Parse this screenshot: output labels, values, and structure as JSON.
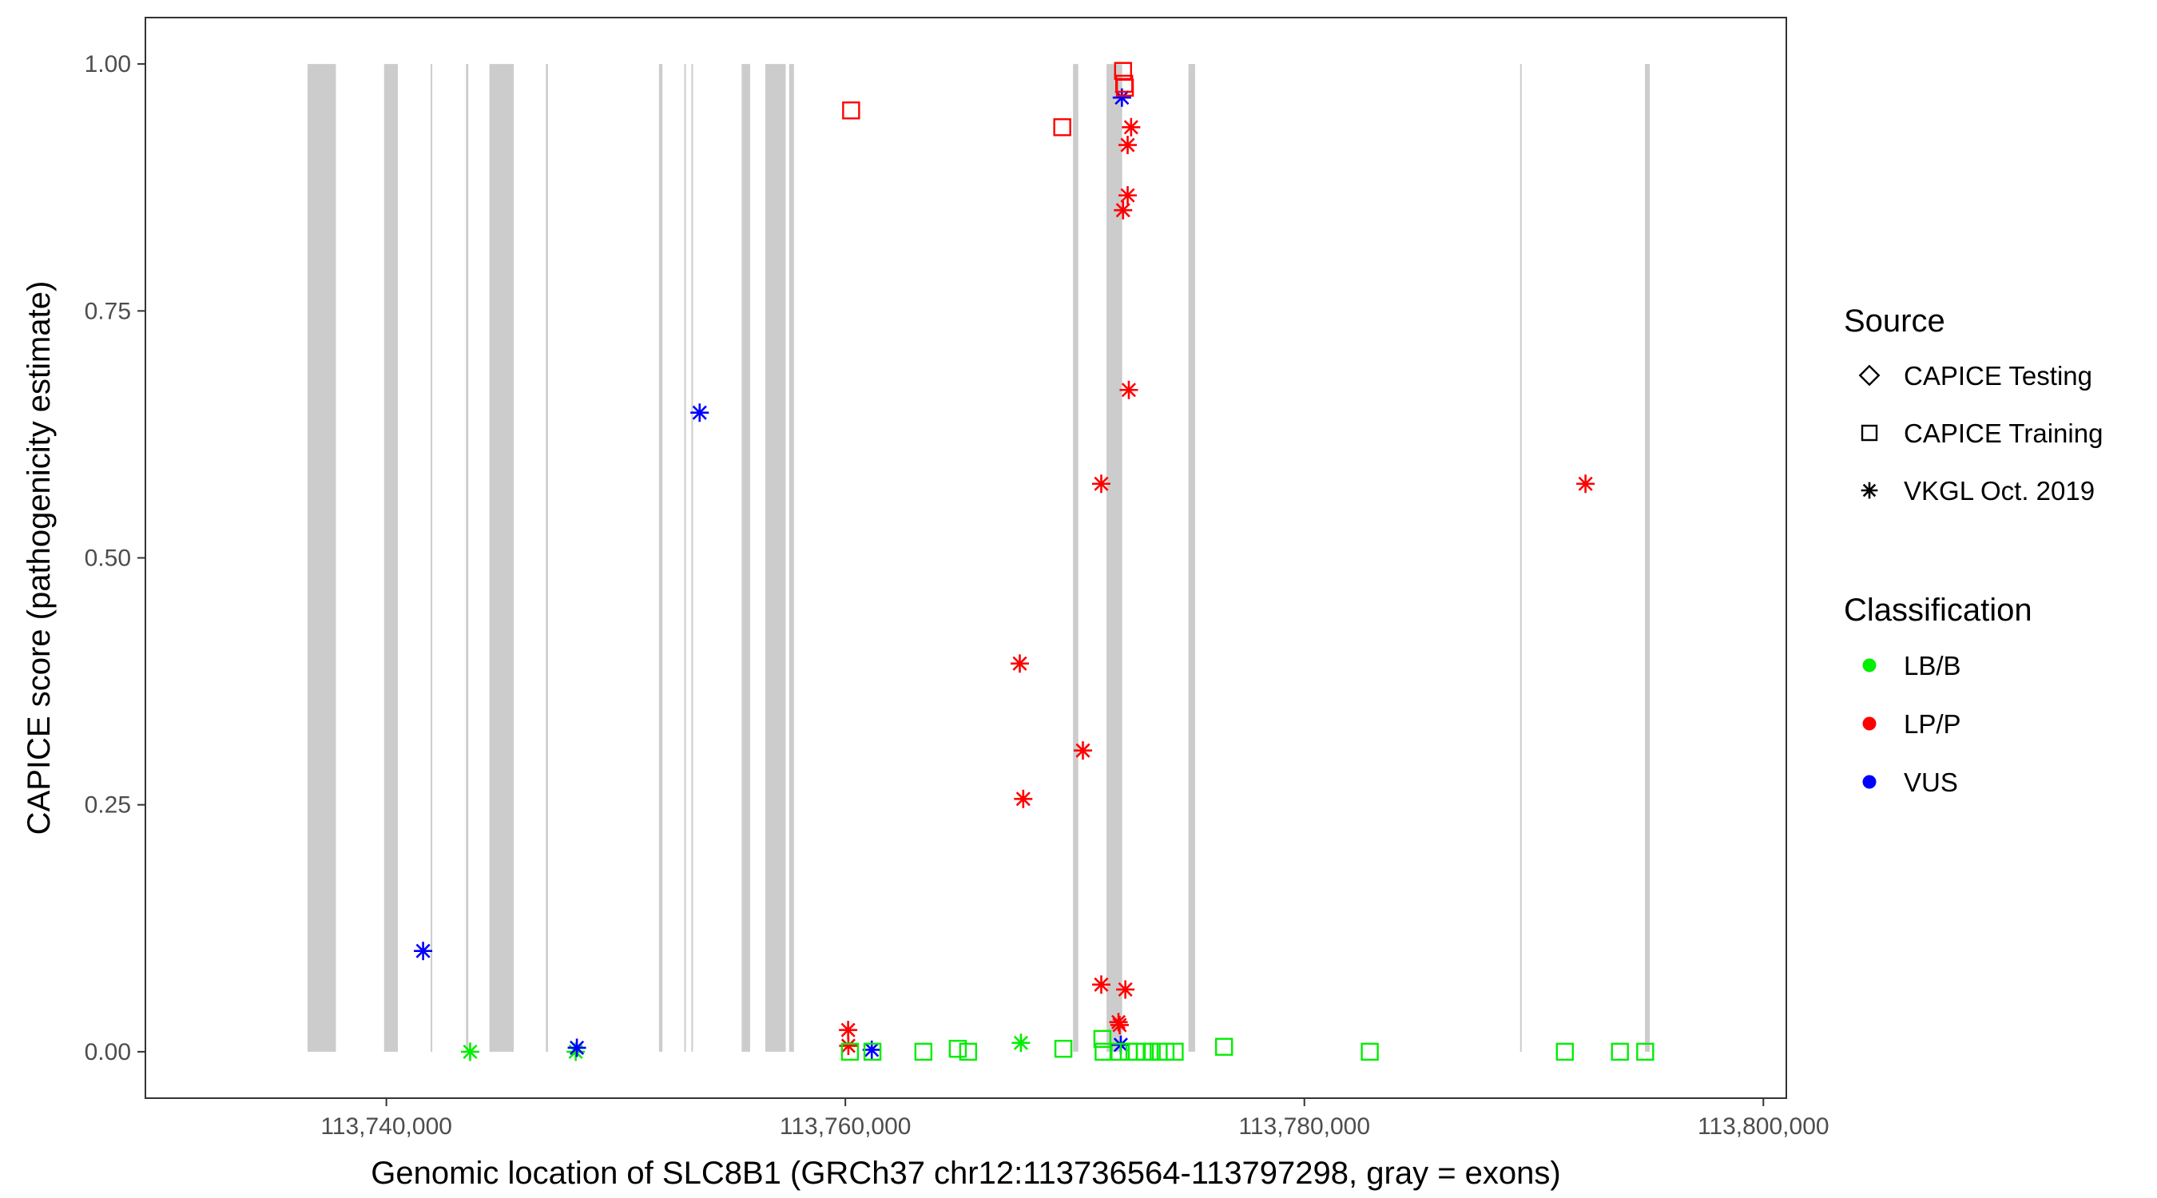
{
  "chart_data": {
    "type": "scatter",
    "title": "",
    "xlabel": "Genomic location of SLC8B1 (GRCh37 chr12:113736564-113797298, gray = exons)",
    "ylabel": "CAPICE score (pathogenicity estimate)",
    "xlim": [
      113729500,
      113801000
    ],
    "ylim": [
      -0.047,
      1.047
    ],
    "x_ticks": [
      113740000,
      113760000,
      113780000,
      113800000
    ],
    "x_tick_labels": [
      "113,740,000",
      "113,760,000",
      "113,780,000",
      "113,800,000"
    ],
    "y_ticks": [
      0,
      0.25,
      0.5,
      0.75,
      1.0
    ],
    "y_tick_labels": [
      "0.00",
      "0.25",
      "0.50",
      "0.75",
      "1.00"
    ],
    "grid": false,
    "legend_placement": "right",
    "exon_color": "#cccccc",
    "exons": [
      [
        113736564,
        113737800
      ],
      [
        113739900,
        113740500
      ],
      [
        113741930,
        113741990
      ],
      [
        113743470,
        113743570
      ],
      [
        113744490,
        113745550
      ],
      [
        113746950,
        113747040
      ],
      [
        113751880,
        113752030
      ],
      [
        113752980,
        113753040
      ],
      [
        113753290,
        113753350
      ],
      [
        113755480,
        113755850
      ],
      [
        113756510,
        113757400
      ],
      [
        113757550,
        113757760
      ],
      [
        113769920,
        113770150
      ],
      [
        113771380,
        113772060
      ],
      [
        113774950,
        113775240
      ],
      [
        113789400,
        113789470
      ],
      [
        113794840,
        113795050
      ]
    ],
    "legends": [
      {
        "title": "Source",
        "entries": [
          {
            "label": "CAPICE Testing",
            "shape": "diamond"
          },
          {
            "label": "CAPICE Training",
            "shape": "square"
          },
          {
            "label": "VKGL Oct. 2019",
            "shape": "asterisk"
          }
        ]
      },
      {
        "title": "Classification",
        "entries": [
          {
            "label": "LB/B",
            "color": "#00ee00"
          },
          {
            "label": "LP/P",
            "color": "#ff0000"
          },
          {
            "label": "VUS",
            "color": "#0000ff"
          }
        ]
      }
    ],
    "class_colors": {
      "LB/B": "#00ee00",
      "LP/P": "#ff0000",
      "VUS": "#0000ff"
    },
    "points": [
      {
        "x": 113741600,
        "y": 0.102,
        "source": "VKGL Oct. 2019",
        "class": "VUS"
      },
      {
        "x": 113743650,
        "y": 0.0,
        "source": "VKGL Oct. 2019",
        "class": "LB/B"
      },
      {
        "x": 113748250,
        "y": 0.0,
        "source": "VKGL Oct. 2019",
        "class": "LB/B"
      },
      {
        "x": 113748300,
        "y": 0.004,
        "source": "VKGL Oct. 2019",
        "class": "VUS"
      },
      {
        "x": 113753650,
        "y": 0.647,
        "source": "VKGL Oct. 2019",
        "class": "VUS"
      },
      {
        "x": 113760250,
        "y": 0.953,
        "source": "CAPICE Training",
        "class": "LP/P"
      },
      {
        "x": 113760120,
        "y": 0.022,
        "source": "VKGL Oct. 2019",
        "class": "LP/P"
      },
      {
        "x": 113760130,
        "y": 0.006,
        "source": "VKGL Oct. 2019",
        "class": "LP/P"
      },
      {
        "x": 113760200,
        "y": 0.0,
        "source": "CAPICE Training",
        "class": "LB/B"
      },
      {
        "x": 113761150,
        "y": 0.002,
        "source": "VKGL Oct. 2019",
        "class": "VUS"
      },
      {
        "x": 113761180,
        "y": 0.0,
        "source": "CAPICE Training",
        "class": "LB/B"
      },
      {
        "x": 113763400,
        "y": 0.0,
        "source": "CAPICE Training",
        "class": "LB/B"
      },
      {
        "x": 113764900,
        "y": 0.003,
        "source": "CAPICE Training",
        "class": "LB/B"
      },
      {
        "x": 113765350,
        "y": 0.0,
        "source": "CAPICE Training",
        "class": "LB/B"
      },
      {
        "x": 113767600,
        "y": 0.393,
        "source": "VKGL Oct. 2019",
        "class": "LP/P"
      },
      {
        "x": 113767750,
        "y": 0.256,
        "source": "VKGL Oct. 2019",
        "class": "LP/P"
      },
      {
        "x": 113767650,
        "y": 0.009,
        "source": "VKGL Oct. 2019",
        "class": "LB/B"
      },
      {
        "x": 113769450,
        "y": 0.936,
        "source": "CAPICE Training",
        "class": "LP/P"
      },
      {
        "x": 113769500,
        "y": 0.003,
        "source": "CAPICE Training",
        "class": "LB/B"
      },
      {
        "x": 113770350,
        "y": 0.305,
        "source": "VKGL Oct. 2019",
        "class": "LP/P"
      },
      {
        "x": 113771150,
        "y": 0.575,
        "source": "VKGL Oct. 2019",
        "class": "LP/P"
      },
      {
        "x": 113771150,
        "y": 0.068,
        "source": "VKGL Oct. 2019",
        "class": "LP/P"
      },
      {
        "x": 113771200,
        "y": 0.013,
        "source": "CAPICE Training",
        "class": "LB/B"
      },
      {
        "x": 113771250,
        "y": 0.0,
        "source": "CAPICE Training",
        "class": "LB/B"
      },
      {
        "x": 113771900,
        "y": 0.03,
        "source": "VKGL Oct. 2019",
        "class": "LP/P"
      },
      {
        "x": 113771950,
        "y": 0.027,
        "source": "VKGL Oct. 2019",
        "class": "LP/P"
      },
      {
        "x": 113772000,
        "y": 0.007,
        "source": "VKGL Oct. 2019",
        "class": "VUS"
      },
      {
        "x": 113771900,
        "y": 0.0,
        "source": "CAPICE Training",
        "class": "LB/B"
      },
      {
        "x": 113772050,
        "y": 0.966,
        "source": "VKGL Oct. 2019",
        "class": "VUS"
      },
      {
        "x": 113772100,
        "y": 0.993,
        "source": "CAPICE Training",
        "class": "LP/P"
      },
      {
        "x": 113772150,
        "y": 0.98,
        "source": "CAPICE Training",
        "class": "LP/P"
      },
      {
        "x": 113772180,
        "y": 0.976,
        "source": "CAPICE Training",
        "class": "LP/P"
      },
      {
        "x": 113772100,
        "y": 0.852,
        "source": "VKGL Oct. 2019",
        "class": "LP/P"
      },
      {
        "x": 113772200,
        "y": 0.063,
        "source": "VKGL Oct. 2019",
        "class": "LP/P"
      },
      {
        "x": 113772300,
        "y": 0.918,
        "source": "VKGL Oct. 2019",
        "class": "LP/P"
      },
      {
        "x": 113772300,
        "y": 0.867,
        "source": "VKGL Oct. 2019",
        "class": "LP/P"
      },
      {
        "x": 113772350,
        "y": 0.67,
        "source": "VKGL Oct. 2019",
        "class": "LP/P"
      },
      {
        "x": 113772450,
        "y": 0.936,
        "source": "VKGL Oct. 2019",
        "class": "LP/P"
      },
      {
        "x": 113772350,
        "y": 0.0,
        "source": "CAPICE Training",
        "class": "LB/B"
      },
      {
        "x": 113772700,
        "y": 0.0,
        "source": "CAPICE Training",
        "class": "LB/B"
      },
      {
        "x": 113773050,
        "y": 0.0,
        "source": "CAPICE Training",
        "class": "LB/B"
      },
      {
        "x": 113773350,
        "y": 0.0,
        "source": "CAPICE Training",
        "class": "LB/B"
      },
      {
        "x": 113773650,
        "y": 0.0,
        "source": "CAPICE Training",
        "class": "LB/B"
      },
      {
        "x": 113773950,
        "y": 0.0,
        "source": "CAPICE Training",
        "class": "LB/B"
      },
      {
        "x": 113774350,
        "y": 0.0,
        "source": "CAPICE Training",
        "class": "LB/B"
      },
      {
        "x": 113776500,
        "y": 0.005,
        "source": "CAPICE Training",
        "class": "LB/B"
      },
      {
        "x": 113782850,
        "y": 0.0,
        "source": "CAPICE Training",
        "class": "LB/B"
      },
      {
        "x": 113791350,
        "y": 0.0,
        "source": "CAPICE Training",
        "class": "LB/B"
      },
      {
        "x": 113792250,
        "y": 0.575,
        "source": "VKGL Oct. 2019",
        "class": "LP/P"
      },
      {
        "x": 113793750,
        "y": 0.0,
        "source": "CAPICE Training",
        "class": "LB/B"
      },
      {
        "x": 113794850,
        "y": 0.0,
        "source": "CAPICE Training",
        "class": "LB/B"
      }
    ]
  }
}
